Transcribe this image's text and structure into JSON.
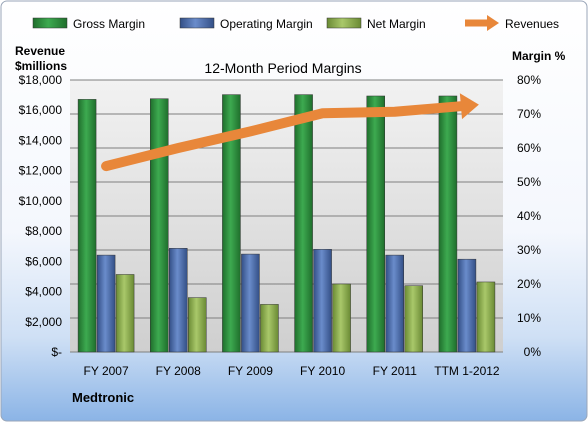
{
  "chart_data": {
    "type": "bar",
    "title": "12-Month Period Margins",
    "company": "Medtronic",
    "y_left_label": [
      "Revenue",
      "$millions"
    ],
    "y_right_label": "Margin %",
    "categories": [
      "FY 2007",
      "FY 2008",
      "FY 2009",
      "FY 2010",
      "FY 2011",
      "TTM 1-2012"
    ],
    "y_right_range": [
      0,
      80
    ],
    "y_right_ticks": [
      "0%",
      "10%",
      "20%",
      "30%",
      "40%",
      "50%",
      "60%",
      "70%",
      "80%"
    ],
    "y_left_range": [
      0,
      18000
    ],
    "y_left_ticks": [
      "$-",
      "$2,000",
      "$4,000",
      "$6,000",
      "$8,000",
      "$10,000",
      "$12,000",
      "$14,000",
      "$16,000",
      "$18,000"
    ],
    "grid": true,
    "legend_position": "top",
    "series": [
      {
        "name": "Gross Margin",
        "axis": "right",
        "kind": "bar",
        "color": "#2e8b3e",
        "values": [
          74.3,
          74.5,
          75.7,
          75.7,
          75.3,
          75.3
        ]
      },
      {
        "name": "Operating Margin",
        "axis": "right",
        "kind": "bar",
        "color": "#4a6fb0",
        "values": [
          28.5,
          30.5,
          28.8,
          30.2,
          28.5,
          27.3
        ]
      },
      {
        "name": "Net Margin",
        "axis": "right",
        "kind": "bar",
        "color": "#8db04e",
        "values": [
          22.8,
          16.0,
          14.0,
          20.0,
          19.5,
          20.6
        ]
      },
      {
        "name": "Revenues",
        "axis": "left",
        "kind": "line",
        "color": "#e8873a",
        "values": [
          12300,
          13500,
          14600,
          15800,
          15900,
          16300
        ]
      }
    ]
  }
}
